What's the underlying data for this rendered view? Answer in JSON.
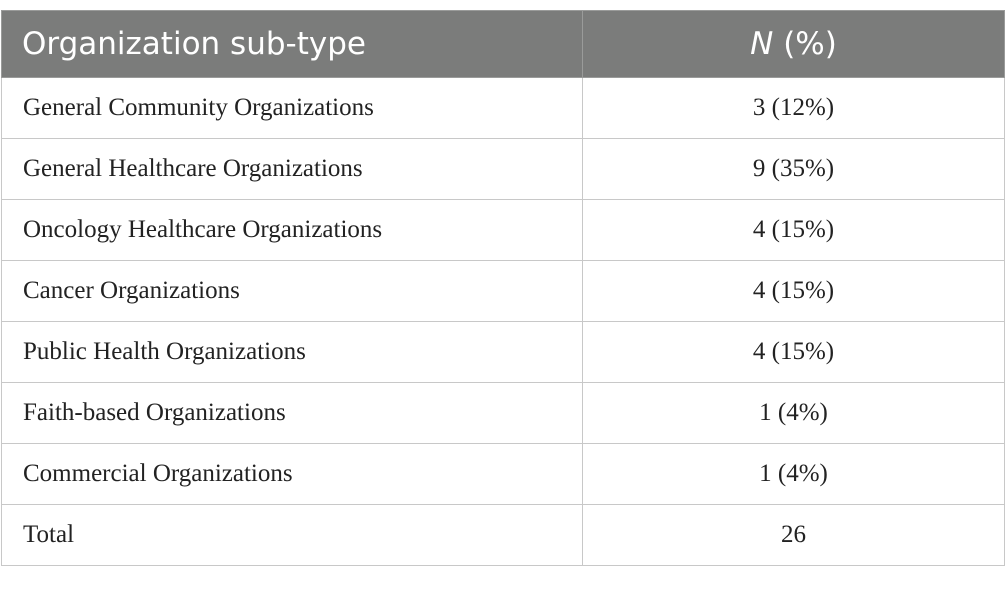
{
  "table": {
    "header": {
      "col1": "Organization sub-type",
      "col2_italic": "N",
      "col2_rest": " (%)"
    },
    "rows": [
      {
        "label": "General Community Organizations",
        "value": "3 (12%)"
      },
      {
        "label": "General Healthcare Organizations",
        "value": "9 (35%)"
      },
      {
        "label": "Oncology Healthcare Organizations",
        "value": "4 (15%)"
      },
      {
        "label": "Cancer Organizations",
        "value": "4 (15%)"
      },
      {
        "label": "Public Health Organizations",
        "value": "4 (15%)"
      },
      {
        "label": "Faith-based Organizations",
        "value": "1 (4%)"
      },
      {
        "label": "Commercial Organizations",
        "value": "1 (4%)"
      },
      {
        "label": "Total",
        "value": "26"
      }
    ]
  },
  "colors": {
    "header_bg": "#7b7c7b",
    "header_text": "#ffffff",
    "border": "#c8c8c8"
  }
}
